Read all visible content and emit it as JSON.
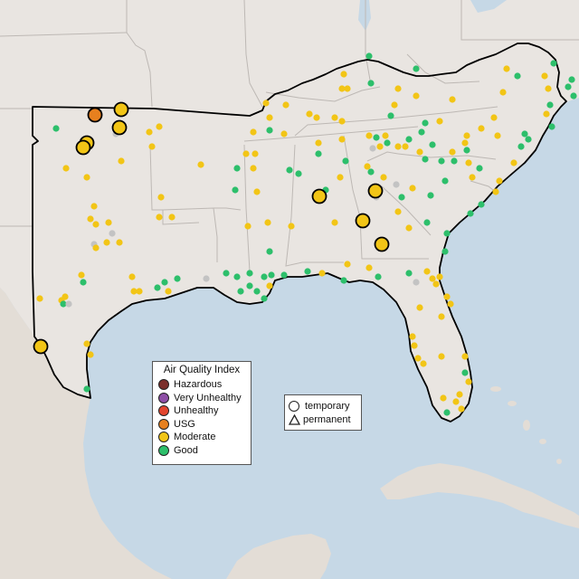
{
  "legend": {
    "title": "Air Quality Index",
    "levels": [
      {
        "label": "Hazardous",
        "color": "#7b2f2b"
      },
      {
        "label": "Very Unhealthy",
        "color": "#8e4fa6"
      },
      {
        "label": "Unhealthy",
        "color": "#e2452e"
      },
      {
        "label": "USG",
        "color": "#e7801e"
      },
      {
        "label": "Moderate",
        "color": "#f2c516"
      },
      {
        "label": "Good",
        "color": "#2dbf6b"
      }
    ]
  },
  "monitor_types": [
    {
      "label": "temporary",
      "shape": "circle"
    },
    {
      "label": "permanent",
      "shape": "triangle"
    }
  ],
  "colors": {
    "water": "#c6d8e6",
    "land": "#e9e5e1",
    "mexico_land": "#e3ddd6",
    "state_border": "#bdb8b4",
    "region_border": "#000000",
    "no_data": "#c3c3c3"
  },
  "large_markers": [
    {
      "category": "USG"
    },
    {
      "category": "Moderate"
    },
    {
      "category": "Moderate"
    },
    {
      "category": "Moderate"
    },
    {
      "category": "Moderate"
    },
    {
      "category": "Moderate"
    },
    {
      "category": "Moderate"
    },
    {
      "category": "Moderate"
    },
    {
      "category": "Moderate"
    },
    {
      "category": "Moderate"
    }
  ]
}
